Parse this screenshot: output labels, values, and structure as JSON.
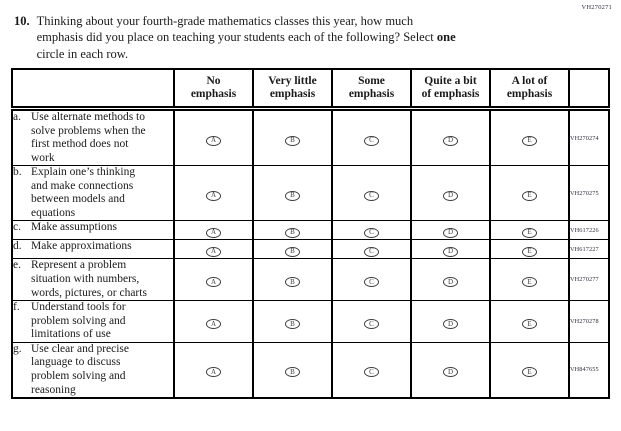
{
  "page": {
    "top_code": "VH270271",
    "question": {
      "number": "10.",
      "lines": [
        "Thinking about your fourth-grade mathematics classes this year, how much",
        "emphasis did you place on teaching your students each of the following? Select ",
        "circle in each row."
      ],
      "bold_word": "one"
    }
  },
  "table": {
    "columns": [
      {
        "line1": "No",
        "line2": "emphasis"
      },
      {
        "line1": "Very little",
        "line2": "emphasis"
      },
      {
        "line1": "Some",
        "line2": "emphasis"
      },
      {
        "line1": "Quite a bit",
        "line2": "of emphasis"
      },
      {
        "line1": "A lot of",
        "line2": "emphasis"
      }
    ],
    "option_letters": [
      "A",
      "B",
      "C",
      "D",
      "E"
    ],
    "rows": [
      {
        "letter": "a.",
        "label": "Use alternate methods to solve problems when the first method does not work",
        "code": "VH270274"
      },
      {
        "letter": "b.",
        "label": "Explain one’s thinking and make connections between models and equations",
        "code": "VH270275"
      },
      {
        "letter": "c.",
        "label": "Make assumptions",
        "code": "VH617226"
      },
      {
        "letter": "d.",
        "label": "Make approximations",
        "code": "VH617227"
      },
      {
        "letter": "e.",
        "label": "Represent a problem situation with numbers, words, pictures, or charts",
        "code": "VH270277"
      },
      {
        "letter": "f.",
        "label": "Understand tools for problem solving and limitations of use",
        "code": "VH270278"
      },
      {
        "letter": "g.",
        "label": "Use clear and precise language to discuss problem solving and reasoning",
        "code": "VH847655"
      }
    ]
  },
  "colors": {
    "ink": "#1a1a1a",
    "oval_outline": "#3d3d3d",
    "code_text": "#2e2e3e",
    "background": "#ffffff"
  }
}
